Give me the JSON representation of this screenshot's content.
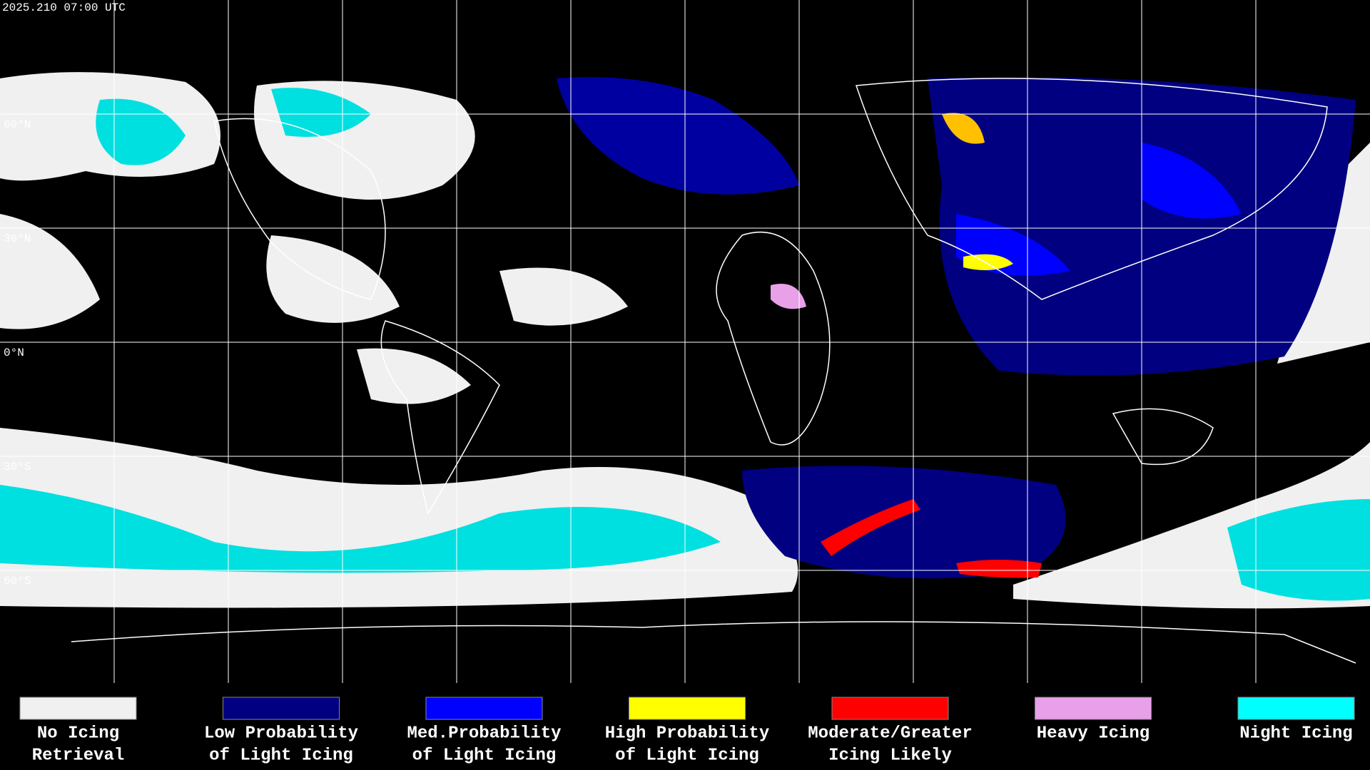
{
  "header": {
    "timestamp": "2025.210 07:00 UTC"
  },
  "map": {
    "lat_labels": [
      "60°N",
      "30°N",
      "0°N",
      "30°S",
      "60°S"
    ]
  },
  "legend": {
    "items": [
      {
        "lines": [
          "No Icing",
          "Retrieval"
        ],
        "color": "#f0f0f0"
      },
      {
        "lines": [
          "Low Probability",
          "of Light Icing"
        ],
        "color": "#000080"
      },
      {
        "lines": [
          "Med.Probability",
          "of Light Icing"
        ],
        "color": "#0000ff"
      },
      {
        "lines": [
          "High Probability",
          "of Light Icing"
        ],
        "color": "#ffff00"
      },
      {
        "lines": [
          "Moderate/Greater",
          "Icing Likely"
        ],
        "color": "#ff0000"
      },
      {
        "lines": [
          "Heavy Icing"
        ],
        "color": "#e8a0e8"
      },
      {
        "lines": [
          "Night Icing"
        ],
        "color": "#00ffff"
      }
    ]
  }
}
